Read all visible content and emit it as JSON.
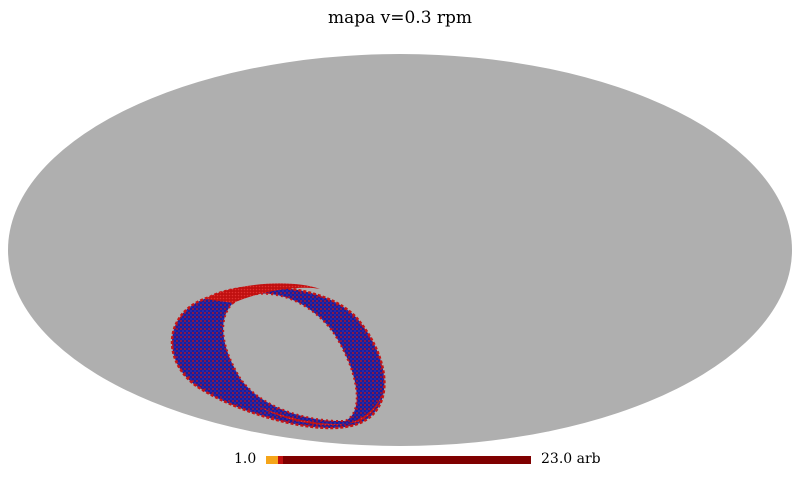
{
  "title": "mapa v=0.3 rpm",
  "projection": "mollweide",
  "background_color": "#afafaf",
  "feature": {
    "description_colors": [
      "#00007f",
      "#ce1111"
    ]
  },
  "colorbar": {
    "min_label": "1.0",
    "max_label": "23.0 arb",
    "min": 1.0,
    "max": 23.0,
    "colors": [
      "#f5a519",
      "#c01010",
      "#7f0000"
    ]
  }
}
